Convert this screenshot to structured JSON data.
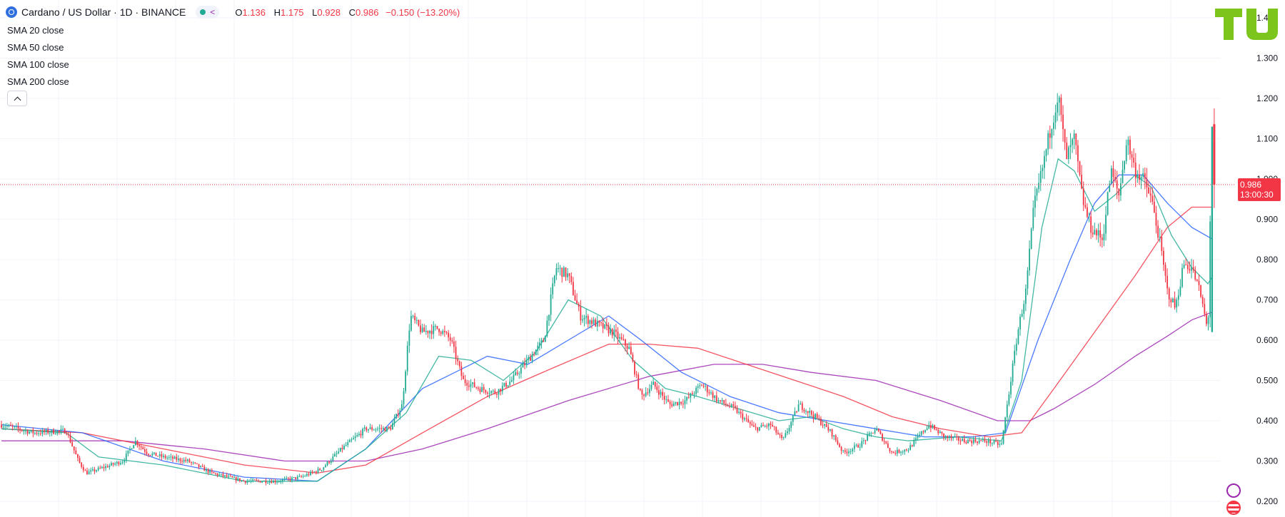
{
  "header": {
    "symbol_title": "Cardano / US Dollar · 1D · BINANCE",
    "ohlc": {
      "o_label": "O",
      "o_value": "1.136",
      "h_label": "H",
      "h_value": "1.175",
      "l_label": "L",
      "l_value": "0.928",
      "c_label": "C",
      "c_value": "0.986",
      "change": "−0.150 (−13.20%)"
    }
  },
  "indicators": [
    "SMA 20 close",
    "SMA 50 close",
    "SMA 100 close",
    "SMA 200 close"
  ],
  "last_price": {
    "value": "0.986",
    "countdown": "13:00:30"
  },
  "colors": {
    "up": "#22ab94",
    "down": "#f23645",
    "sma20": "#22ab94",
    "sma50": "#2962ff",
    "sma100": "#f23645",
    "sma200": "#9c27b0",
    "logo": "#7cc51d"
  },
  "chart_data": {
    "type": "candlestick",
    "symbol": "ADA/USD",
    "timeframe": "1D",
    "y_axis_ticks": [
      "1.400",
      "1.300",
      "1.200",
      "1.100",
      "1.000",
      "0.900",
      "0.800",
      "0.700",
      "0.600",
      "0.500",
      "0.400",
      "0.300",
      "0.200"
    ],
    "ylim": [
      0.17,
      1.42
    ],
    "grid": true,
    "close_path": [
      [
        0,
        0.39
      ],
      [
        40,
        0.37
      ],
      [
        80,
        0.375
      ],
      [
        95,
        0.3
      ],
      [
        105,
        0.27
      ],
      [
        120,
        0.28
      ],
      [
        150,
        0.3
      ],
      [
        165,
        0.35
      ],
      [
        180,
        0.32
      ],
      [
        200,
        0.31
      ],
      [
        230,
        0.3
      ],
      [
        260,
        0.27
      ],
      [
        300,
        0.25
      ],
      [
        340,
        0.25
      ],
      [
        370,
        0.26
      ],
      [
        395,
        0.28
      ],
      [
        420,
        0.33
      ],
      [
        450,
        0.38
      ],
      [
        480,
        0.38
      ],
      [
        495,
        0.44
      ],
      [
        505,
        0.66
      ],
      [
        520,
        0.62
      ],
      [
        540,
        0.63
      ],
      [
        555,
        0.6
      ],
      [
        570,
        0.5
      ],
      [
        590,
        0.48
      ],
      [
        610,
        0.47
      ],
      [
        630,
        0.5
      ],
      [
        650,
        0.55
      ],
      [
        670,
        0.6
      ],
      [
        685,
        0.78
      ],
      [
        700,
        0.76
      ],
      [
        715,
        0.66
      ],
      [
        735,
        0.64
      ],
      [
        755,
        0.62
      ],
      [
        775,
        0.58
      ],
      [
        790,
        0.46
      ],
      [
        805,
        0.49
      ],
      [
        825,
        0.44
      ],
      [
        845,
        0.45
      ],
      [
        865,
        0.49
      ],
      [
        885,
        0.45
      ],
      [
        905,
        0.43
      ],
      [
        930,
        0.38
      ],
      [
        950,
        0.39
      ],
      [
        965,
        0.35
      ],
      [
        985,
        0.44
      ],
      [
        1005,
        0.41
      ],
      [
        1025,
        0.37
      ],
      [
        1040,
        0.32
      ],
      [
        1060,
        0.34
      ],
      [
        1080,
        0.38
      ],
      [
        1100,
        0.32
      ],
      [
        1120,
        0.33
      ],
      [
        1145,
        0.39
      ],
      [
        1165,
        0.36
      ],
      [
        1190,
        0.35
      ],
      [
        1215,
        0.35
      ],
      [
        1235,
        0.34
      ],
      [
        1245,
        0.48
      ],
      [
        1255,
        0.62
      ],
      [
        1265,
        0.72
      ],
      [
        1275,
        0.93
      ],
      [
        1285,
        1.02
      ],
      [
        1295,
        1.12
      ],
      [
        1305,
        1.21
      ],
      [
        1315,
        1.05
      ],
      [
        1325,
        1.1
      ],
      [
        1335,
        0.95
      ],
      [
        1345,
        0.88
      ],
      [
        1360,
        0.85
      ],
      [
        1370,
        1.02
      ],
      [
        1380,
        0.96
      ],
      [
        1390,
        1.1
      ],
      [
        1400,
        1.02
      ],
      [
        1410,
        1.0
      ],
      [
        1420,
        0.95
      ],
      [
        1430,
        0.85
      ],
      [
        1440,
        0.72
      ],
      [
        1450,
        0.68
      ],
      [
        1460,
        0.79
      ],
      [
        1470,
        0.78
      ],
      [
        1480,
        0.72
      ],
      [
        1490,
        0.62
      ],
      [
        1495,
        1.136
      ],
      [
        1496,
        0.986
      ]
    ],
    "sma20_path": [
      [
        0,
        0.38
      ],
      [
        80,
        0.37
      ],
      [
        120,
        0.31
      ],
      [
        200,
        0.29
      ],
      [
        300,
        0.25
      ],
      [
        390,
        0.25
      ],
      [
        450,
        0.33
      ],
      [
        500,
        0.42
      ],
      [
        540,
        0.56
      ],
      [
        580,
        0.55
      ],
      [
        620,
        0.5
      ],
      [
        660,
        0.57
      ],
      [
        700,
        0.7
      ],
      [
        740,
        0.66
      ],
      [
        780,
        0.55
      ],
      [
        820,
        0.48
      ],
      [
        860,
        0.46
      ],
      [
        910,
        0.43
      ],
      [
        960,
        0.4
      ],
      [
        1000,
        0.41
      ],
      [
        1040,
        0.38
      ],
      [
        1080,
        0.36
      ],
      [
        1120,
        0.35
      ],
      [
        1180,
        0.36
      ],
      [
        1235,
        0.35
      ],
      [
        1260,
        0.5
      ],
      [
        1285,
        0.88
      ],
      [
        1305,
        1.05
      ],
      [
        1325,
        1.02
      ],
      [
        1350,
        0.92
      ],
      [
        1375,
        0.96
      ],
      [
        1400,
        1.01
      ],
      [
        1420,
        0.98
      ],
      [
        1445,
        0.86
      ],
      [
        1470,
        0.78
      ],
      [
        1490,
        0.74
      ],
      [
        1496,
        0.76
      ]
    ],
    "sma50_path": [
      [
        0,
        0.39
      ],
      [
        100,
        0.37
      ],
      [
        200,
        0.3
      ],
      [
        300,
        0.26
      ],
      [
        390,
        0.25
      ],
      [
        450,
        0.33
      ],
      [
        520,
        0.48
      ],
      [
        600,
        0.56
      ],
      [
        650,
        0.54
      ],
      [
        700,
        0.6
      ],
      [
        750,
        0.66
      ],
      [
        790,
        0.6
      ],
      [
        840,
        0.52
      ],
      [
        900,
        0.46
      ],
      [
        960,
        0.42
      ],
      [
        1020,
        0.4
      ],
      [
        1080,
        0.38
      ],
      [
        1140,
        0.36
      ],
      [
        1200,
        0.36
      ],
      [
        1240,
        0.37
      ],
      [
        1280,
        0.6
      ],
      [
        1320,
        0.8
      ],
      [
        1350,
        0.94
      ],
      [
        1380,
        1.01
      ],
      [
        1410,
        1.01
      ],
      [
        1440,
        0.94
      ],
      [
        1470,
        0.88
      ],
      [
        1496,
        0.85
      ]
    ],
    "sma100_path": [
      [
        0,
        0.38
      ],
      [
        100,
        0.37
      ],
      [
        200,
        0.33
      ],
      [
        300,
        0.29
      ],
      [
        390,
        0.27
      ],
      [
        450,
        0.29
      ],
      [
        520,
        0.37
      ],
      [
        600,
        0.46
      ],
      [
        680,
        0.53
      ],
      [
        750,
        0.59
      ],
      [
        800,
        0.59
      ],
      [
        860,
        0.58
      ],
      [
        920,
        0.54
      ],
      [
        980,
        0.5
      ],
      [
        1040,
        0.46
      ],
      [
        1100,
        0.41
      ],
      [
        1160,
        0.38
      ],
      [
        1220,
        0.36
      ],
      [
        1260,
        0.37
      ],
      [
        1300,
        0.48
      ],
      [
        1350,
        0.62
      ],
      [
        1400,
        0.76
      ],
      [
        1440,
        0.88
      ],
      [
        1470,
        0.93
      ],
      [
        1496,
        0.93
      ]
    ],
    "sma200_path": [
      [
        0,
        0.35
      ],
      [
        150,
        0.35
      ],
      [
        250,
        0.33
      ],
      [
        350,
        0.3
      ],
      [
        450,
        0.3
      ],
      [
        520,
        0.33
      ],
      [
        600,
        0.38
      ],
      [
        700,
        0.45
      ],
      [
        800,
        0.51
      ],
      [
        880,
        0.54
      ],
      [
        940,
        0.54
      ],
      [
        1000,
        0.52
      ],
      [
        1080,
        0.5
      ],
      [
        1160,
        0.45
      ],
      [
        1230,
        0.4
      ],
      [
        1270,
        0.4
      ],
      [
        1300,
        0.43
      ],
      [
        1350,
        0.49
      ],
      [
        1400,
        0.56
      ],
      [
        1440,
        0.61
      ],
      [
        1470,
        0.65
      ],
      [
        1496,
        0.67
      ]
    ]
  }
}
